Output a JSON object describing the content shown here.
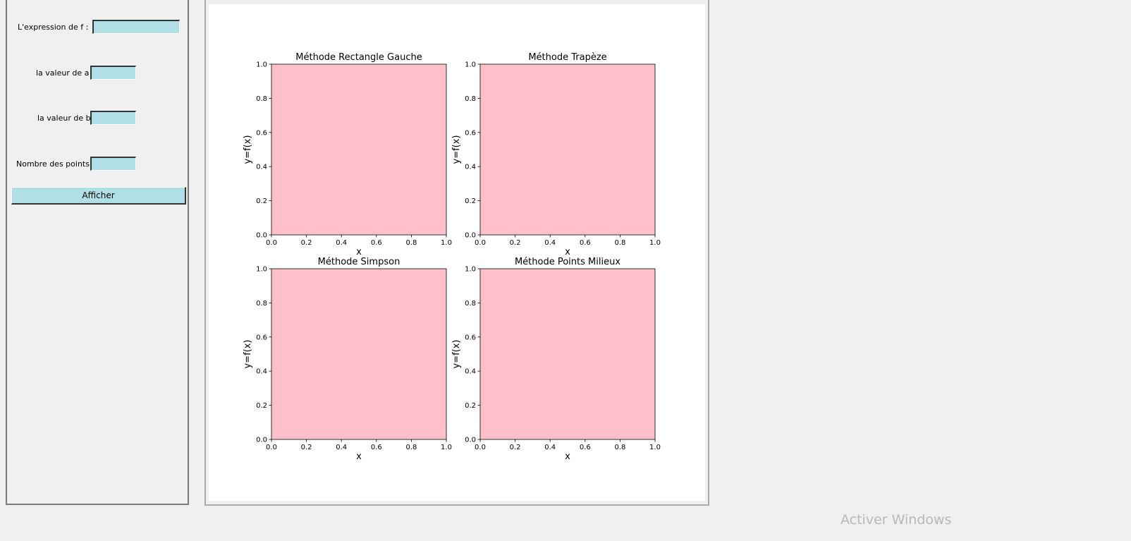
{
  "form": {
    "expr_label": "L'expression de f :",
    "expr_value": "",
    "a_label": "la valeur de a :",
    "a_value": "",
    "b_label": "la valeur de b:",
    "b_value": "",
    "n_label": "Nombre des points:",
    "n_value": "",
    "submit_label": "Afficher",
    "input_color": "#b0e0e6"
  },
  "watermark": "Activer Windows",
  "chart_data": [
    {
      "type": "line",
      "title": "Méthode Rectangle Gauche",
      "xlabel": "x",
      "ylabel": "y=f(x)",
      "xlim": [
        0.0,
        1.0
      ],
      "ylim": [
        0.0,
        1.0
      ],
      "xticks": [
        "0.0",
        "0.2",
        "0.4",
        "0.6",
        "0.8",
        "1.0"
      ],
      "yticks": [
        "0.0",
        "0.2",
        "0.4",
        "0.6",
        "0.8",
        "1.0"
      ],
      "background": "#ffc0cb",
      "series": []
    },
    {
      "type": "line",
      "title": "Méthode Trapèze",
      "xlabel": "x",
      "ylabel": "y=f(x)",
      "xlim": [
        0.0,
        1.0
      ],
      "ylim": [
        0.0,
        1.0
      ],
      "xticks": [
        "0.0",
        "0.2",
        "0.4",
        "0.6",
        "0.8",
        "1.0"
      ],
      "yticks": [
        "0.0",
        "0.2",
        "0.4",
        "0.6",
        "0.8",
        "1.0"
      ],
      "background": "#ffc0cb",
      "series": []
    },
    {
      "type": "line",
      "title": "Méthode Simpson",
      "xlabel": "x",
      "ylabel": "y=f(x)",
      "xlim": [
        0.0,
        1.0
      ],
      "ylim": [
        0.0,
        1.0
      ],
      "xticks": [
        "0.0",
        "0.2",
        "0.4",
        "0.6",
        "0.8",
        "1.0"
      ],
      "yticks": [
        "0.0",
        "0.2",
        "0.4",
        "0.6",
        "0.8",
        "1.0"
      ],
      "background": "#ffc0cb",
      "series": []
    },
    {
      "type": "line",
      "title": "Méthode Points Milieux",
      "xlabel": "x",
      "ylabel": "y=f(x)",
      "xlim": [
        0.0,
        1.0
      ],
      "ylim": [
        0.0,
        1.0
      ],
      "xticks": [
        "0.0",
        "0.2",
        "0.4",
        "0.6",
        "0.8",
        "1.0"
      ],
      "yticks": [
        "0.0",
        "0.2",
        "0.4",
        "0.6",
        "0.8",
        "1.0"
      ],
      "background": "#ffc0cb",
      "series": []
    }
  ]
}
